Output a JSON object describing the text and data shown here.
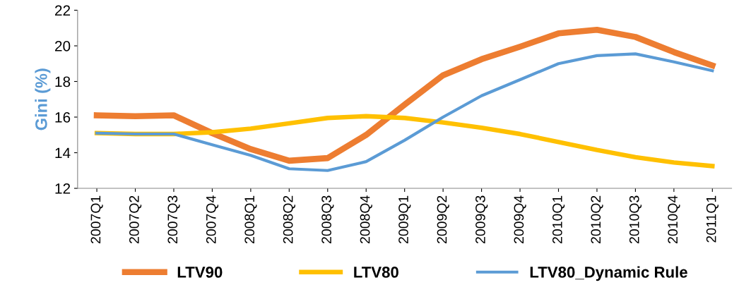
{
  "chart_data": {
    "type": "line",
    "ylabel": "Gini (%)",
    "categories": [
      "2007Q1",
      "2007Q2",
      "2007Q3",
      "2007Q4",
      "2008Q1",
      "2008Q2",
      "2008Q3",
      "2008Q4",
      "2009Q1",
      "2009Q2",
      "2009Q3",
      "2009Q4",
      "2010Q1",
      "2010Q2",
      "2010Q3",
      "2010Q4",
      "2011Q1"
    ],
    "series": [
      {
        "name": "LTV90",
        "color": "#ed7d31",
        "values": [
          16.1,
          16.05,
          16.1,
          15.1,
          14.2,
          13.55,
          13.7,
          15.0,
          16.7,
          18.35,
          19.25,
          19.95,
          20.7,
          20.9,
          20.5,
          19.65,
          18.9
        ]
      },
      {
        "name": "LTV80",
        "color": "#ffc000",
        "values": [
          15.1,
          15.05,
          15.05,
          15.15,
          15.35,
          15.65,
          15.95,
          16.05,
          15.95,
          15.7,
          15.4,
          15.05,
          14.6,
          14.15,
          13.75,
          13.45,
          13.25
        ]
      },
      {
        "name": "LTV80_Dynamic Rule",
        "color": "#5b9bd5",
        "values": [
          15.1,
          15.05,
          15.05,
          14.45,
          13.85,
          13.1,
          13.0,
          13.5,
          14.7,
          16.0,
          17.2,
          18.1,
          19.0,
          19.45,
          19.55,
          19.1,
          18.6
        ]
      }
    ],
    "ylim": [
      12,
      22
    ],
    "yticks": [
      12,
      14,
      16,
      18,
      20,
      22
    ],
    "grid": false,
    "legend": "bottom",
    "marker": "none",
    "line_style": "solid"
  }
}
